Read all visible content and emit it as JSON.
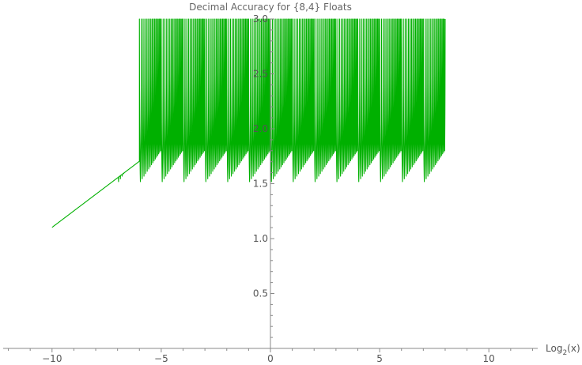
{
  "chart_data": {
    "type": "line",
    "title": "Decimal Accuracy for {8,4} Floats",
    "xlabel_main": "Log",
    "xlabel_sub": "2",
    "xlabel_arg": "(x)",
    "ylabel": "",
    "xlim": [
      -12.3,
      12.1
    ],
    "ylim": [
      0,
      3.0
    ],
    "x_ticks": [
      -10,
      -5,
      0,
      5,
      10
    ],
    "x_tick_labels": [
      "−10",
      "−5",
      "0",
      "5",
      "10"
    ],
    "y_ticks": [
      0.5,
      1.0,
      1.5,
      2.0,
      2.5,
      3.0
    ],
    "y_tick_labels": [
      "0.5",
      "1.0",
      "1.5",
      "2.0",
      "2.5",
      "3.0"
    ],
    "grid": false,
    "legend": "none",
    "series": [
      {
        "color": "#00b000",
        "mantissa_bits": 4,
        "min_exponent": -10,
        "max_exponent": 8,
        "y_cap": 3.0
      }
    ]
  }
}
